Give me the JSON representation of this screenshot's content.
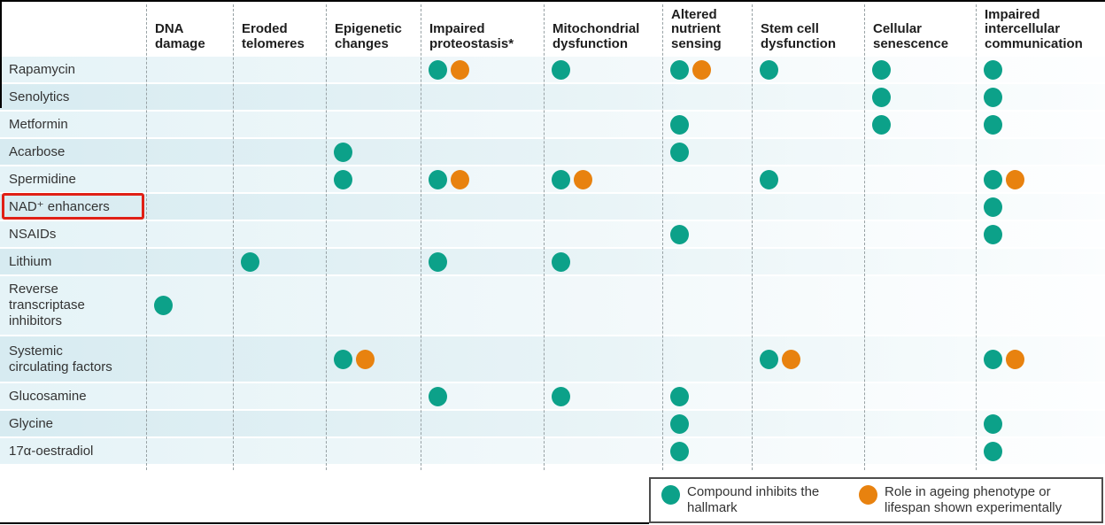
{
  "colors": {
    "teal": "#0ca189",
    "orange": "#e8820f",
    "highlight_red": "#e02016",
    "band_dark": "#d7ebf1",
    "band_light": "#e5f3f7",
    "dashed_line": "#97a1a4",
    "header_text": "#1e1e1e",
    "row_text": "#333333",
    "legend_border": "#4d4d4d",
    "frame_black": "#000000"
  },
  "chart_data": {
    "type": "table",
    "description_markers": {
      "I": "compound inhibits the hallmark (teal dot)",
      "E": "role in ageing phenotype or lifespan shown experimentally (orange dot)"
    },
    "columns": [
      "DNA damage",
      "Eroded telomeres",
      "Epigenetic changes",
      "Impaired proteostasis*",
      "Mitochondrial dysfunction",
      "Altered nutrient sensing",
      "Stem cell dysfunction",
      "Cellular senescence",
      "Impaired intercellular communication"
    ],
    "rows": [
      {
        "label": "Rapamycin",
        "lines": 1,
        "cells": [
          "",
          "",
          "",
          "IE",
          "I",
          "IE",
          "I",
          "I",
          "I"
        ]
      },
      {
        "label": "Senolytics",
        "lines": 1,
        "cells": [
          "",
          "",
          "",
          "",
          "",
          "",
          "",
          "I",
          "I"
        ]
      },
      {
        "label": "Metformin",
        "lines": 1,
        "cells": [
          "",
          "",
          "",
          "",
          "",
          "I",
          "",
          "I",
          "I"
        ]
      },
      {
        "label": "Acarbose",
        "lines": 1,
        "cells": [
          "",
          "",
          "I",
          "",
          "",
          "I",
          "",
          "",
          ""
        ]
      },
      {
        "label": "Spermidine",
        "lines": 1,
        "cells": [
          "",
          "",
          "I",
          "IE",
          "IE",
          "",
          "I",
          "",
          "IE"
        ]
      },
      {
        "label": "NAD⁺ enhancers",
        "lines": 1,
        "highlighted": true,
        "cells": [
          "",
          "",
          "",
          "",
          "",
          "",
          "",
          "",
          "I"
        ]
      },
      {
        "label": "NSAIDs",
        "lines": 1,
        "cells": [
          "",
          "",
          "",
          "",
          "",
          "I",
          "",
          "",
          "I"
        ]
      },
      {
        "label": "Lithium",
        "lines": 1,
        "cells": [
          "",
          "I",
          "",
          "I",
          "I",
          "",
          "",
          "",
          ""
        ]
      },
      {
        "label": "Reverse transcriptase inhibitors",
        "lines": 3,
        "cells": [
          "I",
          "",
          "",
          "",
          "",
          "",
          "",
          "",
          ""
        ]
      },
      {
        "label": "Systemic circulating factors",
        "lines": 2,
        "cells": [
          "",
          "",
          "IE",
          "",
          "",
          "",
          "IE",
          "",
          "IE"
        ]
      },
      {
        "label": "Glucosamine",
        "lines": 1,
        "cells": [
          "",
          "",
          "",
          "I",
          "I",
          "I",
          "",
          "",
          ""
        ]
      },
      {
        "label": "Glycine",
        "lines": 1,
        "cells": [
          "",
          "",
          "",
          "",
          "",
          "I",
          "",
          "",
          "I"
        ]
      },
      {
        "label": "17α-oestradiol",
        "lines": 1,
        "cells": [
          "",
          "",
          "",
          "",
          "",
          "I",
          "",
          "",
          "I"
        ]
      }
    ],
    "legend": [
      {
        "marker": "compound-inhibits",
        "label": "Compound inhibits the hallmark"
      },
      {
        "marker": "experimental-evidence",
        "label": "Role in ageing phenotype or lifespan shown experimentally"
      }
    ]
  }
}
